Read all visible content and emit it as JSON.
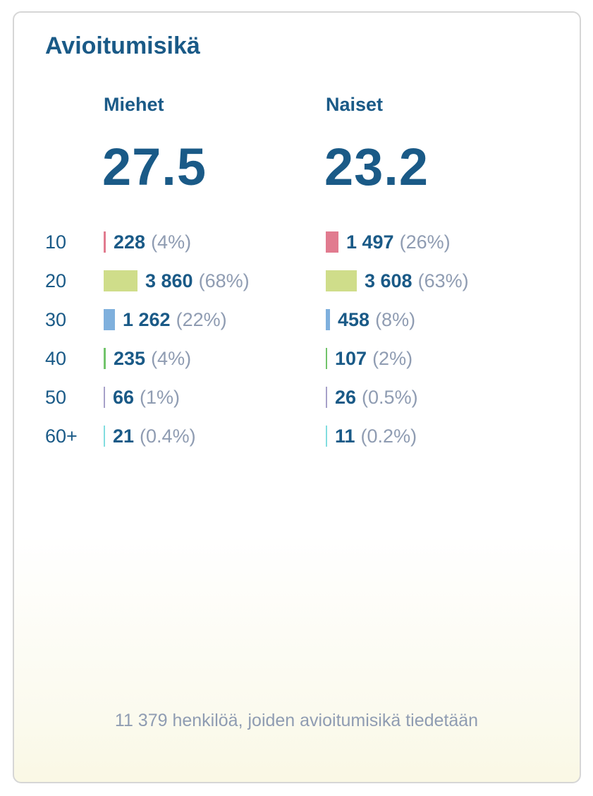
{
  "title": "Avioitumisikä",
  "columns": {
    "men": {
      "label": "Miehet",
      "average": "27.5"
    },
    "women": {
      "label": "Naiset",
      "average": "23.2"
    }
  },
  "footer": "11 379 henkilöä, joiden avioitumisikä tiedetään",
  "colors": {
    "text": "#1a5a87",
    "muted": "#8f9cb2",
    "10": "#e17b8f",
    "20": "#cfdd8a",
    "30": "#7fb0dd",
    "40": "#72c46b",
    "50": "#a7a1c9",
    "60+": "#82dde0"
  },
  "chart_data": {
    "type": "bar",
    "title": "Avioitumisikä",
    "categories": [
      "10",
      "20",
      "30",
      "40",
      "50",
      "60+"
    ],
    "series": [
      {
        "name": "Miehet",
        "average": "27.5",
        "values": [
          228,
          3860,
          1262,
          235,
          66,
          21
        ],
        "value_labels": [
          "228",
          "3 860",
          "1 262",
          "235",
          "66",
          "21"
        ],
        "percent_labels": [
          "(4%)",
          "(68%)",
          "(22%)",
          "(4%)",
          "(1%)",
          "(0.4%)"
        ],
        "percent": [
          4,
          68,
          22,
          4,
          1,
          0.4
        ]
      },
      {
        "name": "Naiset",
        "average": "23.2",
        "values": [
          1497,
          3608,
          458,
          107,
          26,
          11
        ],
        "value_labels": [
          "1 497",
          "3 608",
          "458",
          "107",
          "26",
          "11"
        ],
        "percent_labels": [
          "(26%)",
          "(63%)",
          "(8%)",
          "(2%)",
          "(0.5%)",
          "(0.2%)"
        ],
        "percent": [
          26,
          63,
          8,
          2,
          0.5,
          0.2
        ]
      }
    ],
    "grid": false,
    "legend": "none"
  }
}
